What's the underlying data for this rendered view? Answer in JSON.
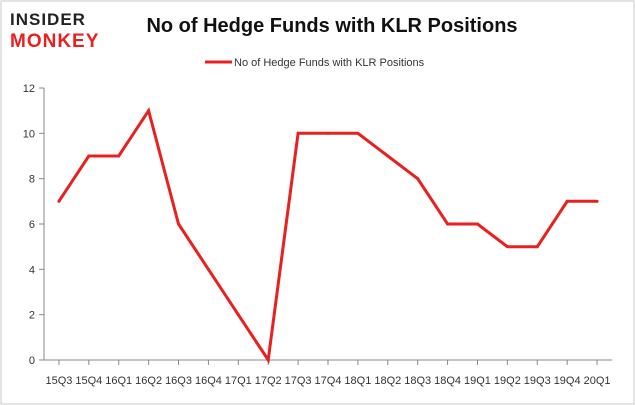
{
  "logo": {
    "line1": "INSIDER",
    "line2": "MONKEY"
  },
  "colors": {
    "line": "#e8201f",
    "axis": "#888888",
    "frame": "#c8c8c8",
    "logo_dark": "#222222",
    "logo_accent": "#e8201f"
  },
  "chart_data": {
    "type": "line",
    "title": "No of Hedge Funds with KLR Positions",
    "xlabel": "",
    "ylabel": "",
    "legend": "top-center",
    "grid": false,
    "ylim": [
      0,
      12
    ],
    "yticks": [
      0,
      2,
      4,
      6,
      8,
      10,
      12
    ],
    "categories": [
      "15Q3",
      "15Q4",
      "16Q1",
      "16Q2",
      "16Q3",
      "16Q4",
      "17Q1",
      "17Q2",
      "17Q3",
      "17Q4",
      "18Q1",
      "18Q2",
      "18Q3",
      "18Q4",
      "19Q1",
      "19Q2",
      "19Q3",
      "19Q4",
      "20Q1"
    ],
    "series": [
      {
        "name": "No of Hedge Funds with KLR Positions",
        "values": [
          7,
          9,
          9,
          11,
          6,
          4,
          2,
          0,
          10,
          10,
          10,
          9,
          8,
          6,
          6,
          5,
          5,
          7,
          7
        ]
      }
    ]
  }
}
